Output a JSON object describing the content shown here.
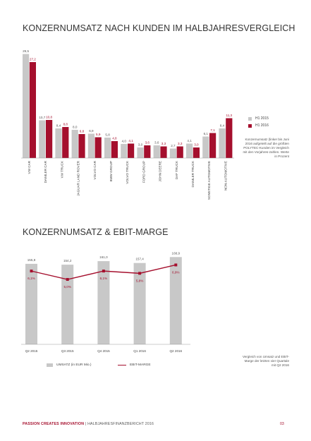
{
  "title_customers": "KONZERNUMSATZ NACH KUNDEN IM HALBJAHRESVERGLEICH",
  "title_revenue": "KONZERNUMSATZ & EBIT-MARGE",
  "colors": {
    "h1_2015": "#c8c8c8",
    "h1_2016": "#a50f2d",
    "accent": "#a50f2d"
  },
  "legend_customers": {
    "h1_2015": "H1 2015",
    "h1_2016": "H1 2016"
  },
  "note_customers": "Konzernumsatz (linker bis Juni 2016 aufgeteilt auf die größten POLYTEC-Kunden im Vergleich mit den Vorjahres-zahlen. Werte in Prozent",
  "legend_revenue": {
    "umsatz": "UMSATZ (in EUR Mio.)",
    "ebit": "EBIT-MARGE"
  },
  "note_revenue": "Vergleich von Umsatz und EBIT-Marge der letzten vier Quartale mit Q2 2016",
  "footer": {
    "brand": "PASSION CREATES INNOVATION",
    "sep": " | ",
    "report": "HALBJAHRESFINANZBERICHT 2016",
    "page": "03"
  },
  "chart_data": [
    {
      "type": "bar",
      "title": "KONZERNUMSATZ NACH KUNDEN IM HALBJAHRESVERGLEICH",
      "categories": [
        "VW CAR",
        "DAIMLER CAR",
        "VW TRUCK",
        "JAGUAR LAND ROVER",
        "VOLVO CAR",
        "BMW GROUP",
        "VOLVO TRUCK",
        "FORD GROUP",
        "JOHN DEERE",
        "DAF TRUCK",
        "DAIMLER TRUCK",
        "SONSTIGE AUTOMOTIVE",
        "NON-AUTOMOTIVE"
      ],
      "series": [
        {
          "name": "H1 2015",
          "values": [
            29.5,
            10.7,
            8.4,
            8.0,
            6.9,
            5.8,
            4.0,
            3.0,
            3.6,
            2.7,
            4.1,
            6.1,
            8.4
          ],
          "labels": [
            "29,5",
            "10,7",
            "8,4",
            "8,0",
            "6,9",
            "5,8",
            "4,0",
            "3,0",
            "3,6",
            "2,7",
            "4,1",
            "6,1",
            "8,4"
          ]
        },
        {
          "name": "H1 2016",
          "values": [
            27.2,
            10.8,
            8.8,
            6.8,
            5.9,
            4.8,
            4.1,
            3.6,
            3.3,
            3.3,
            3.0,
            7.1,
            11.3
          ],
          "labels": [
            "27,2",
            "10,8",
            "8,8",
            "6,8",
            "5,9",
            "4,8",
            "4,1",
            "3,6",
            "3,3",
            "3,3",
            "3,0",
            "7,1",
            "11,3"
          ]
        }
      ],
      "ylim": [
        0,
        30
      ],
      "legend": "right"
    },
    {
      "type": "bar",
      "title": "KONZERNUMSATZ & EBIT-MARGE",
      "categories": [
        "Q2 2015",
        "Q3 2015",
        "Q4 2015",
        "Q1 2016",
        "Q2 2016"
      ],
      "series": [
        {
          "name": "UMSATZ (in EUR Mio.)",
          "type": "bar",
          "values": [
            155.8,
            154.2,
            161.0,
            157.4,
            168.9
          ],
          "labels": [
            "155,8",
            "154,2",
            "161,0",
            "157,4",
            "168,9"
          ]
        },
        {
          "name": "EBIT-MARGE",
          "type": "line",
          "values": [
            6.1,
            5.0,
            6.1,
            5.8,
            6.9
          ],
          "labels": [
            "6,1%",
            "5,0%",
            "6,1%",
            "5,8%",
            "6,9%"
          ]
        }
      ],
      "legend": "bottom"
    }
  ]
}
